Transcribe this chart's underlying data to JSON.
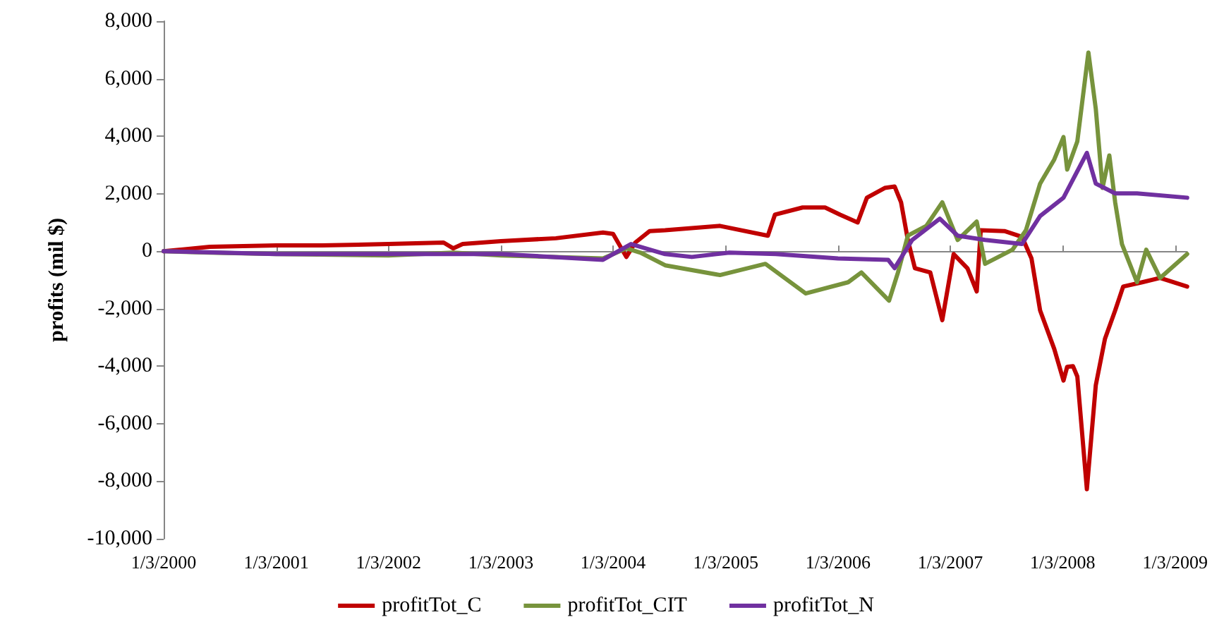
{
  "chart_data": {
    "type": "line",
    "ylabel": "profits (mil $)",
    "legend": "bottom",
    "marker": "none",
    "line_style": "solid",
    "xlim": [
      "2000-01-03",
      "2009-02-11"
    ],
    "xticks": [
      {
        "value": "2000-01-03",
        "label": "1/3/2000"
      },
      {
        "value": "2001-01-03",
        "label": "1/3/2001"
      },
      {
        "value": "2002-01-03",
        "label": "1/3/2002"
      },
      {
        "value": "2003-01-03",
        "label": "1/3/2003"
      },
      {
        "value": "2004-01-03",
        "label": "1/3/2004"
      },
      {
        "value": "2005-01-03",
        "label": "1/3/2005"
      },
      {
        "value": "2006-01-03",
        "label": "1/3/2006"
      },
      {
        "value": "2007-01-03",
        "label": "1/3/2007"
      },
      {
        "value": "2008-01-03",
        "label": "1/3/2008"
      },
      {
        "value": "2009-01-03",
        "label": "1/3/2009"
      }
    ],
    "ylim": [
      -10000,
      8000
    ],
    "yticks": [
      {
        "value": -10000,
        "label": "-10,000"
      },
      {
        "value": -8000,
        "label": "-8,000"
      },
      {
        "value": -6000,
        "label": "-6,000"
      },
      {
        "value": -4000,
        "label": "-4,000"
      },
      {
        "value": -2000,
        "label": "-2,000"
      },
      {
        "value": 0,
        "label": "0"
      },
      {
        "value": 2000,
        "label": "2,000"
      },
      {
        "value": 4000,
        "label": "4,000"
      },
      {
        "value": 6000,
        "label": "6,000"
      },
      {
        "value": 8000,
        "label": "8,000"
      }
    ],
    "series": [
      {
        "name": "profitTot_C",
        "color": "#c00000",
        "x": [
          "2000-01-03",
          "2000-06-01",
          "2001-01-03",
          "2001-06-01",
          "2002-01-03",
          "2002-07-01",
          "2002-08-01",
          "2002-09-01",
          "2003-01-03",
          "2003-07-01",
          "2003-12-01",
          "2004-01-03",
          "2004-02-15",
          "2004-03-15",
          "2004-05-01",
          "2004-06-20",
          "2004-12-15",
          "2005-05-20",
          "2005-06-12",
          "2005-09-10",
          "2005-11-22",
          "2006-01-10",
          "2006-03-08",
          "2006-04-07",
          "2006-06-04",
          "2006-07-06",
          "2006-07-27",
          "2006-08-18",
          "2006-09-10",
          "2006-10-30",
          "2006-12-08",
          "2007-01-14",
          "2007-02-28",
          "2007-03-30",
          "2007-04-12",
          "2007-06-28",
          "2007-08-24",
          "2007-09-24",
          "2007-10-22",
          "2007-12-07",
          "2008-01-06",
          "2008-01-18",
          "2008-02-06",
          "2008-02-20",
          "2008-03-22",
          "2008-04-20",
          "2008-05-20",
          "2008-06-22",
          "2008-07-18",
          "2008-09-18",
          "2008-11-15",
          "2009-02-11"
        ],
        "values": [
          0,
          150,
          200,
          200,
          250,
          300,
          100,
          250,
          350,
          450,
          650,
          600,
          -200,
          300,
          700,
          730,
          880,
          540,
          1270,
          1520,
          1520,
          1270,
          1000,
          1860,
          2200,
          2250,
          1700,
          390,
          -590,
          -740,
          -2400,
          -100,
          -600,
          -1400,
          730,
          700,
          500,
          -250,
          -2060,
          -3400,
          -4500,
          -4020,
          -4000,
          -4360,
          -8280,
          -4660,
          -3040,
          -2060,
          -1230,
          -1080,
          -930,
          -1230
        ]
      },
      {
        "name": "profitTot_CIT",
        "color": "#77933c",
        "x": [
          "2000-01-03",
          "2000-06-01",
          "2001-01-03",
          "2002-01-03",
          "2002-08-01",
          "2003-01-03",
          "2003-12-01",
          "2004-02-15",
          "2004-04-01",
          "2004-06-20",
          "2004-12-15",
          "2005-05-12",
          "2005-09-20",
          "2006-02-05",
          "2006-03-20",
          "2006-06-18",
          "2006-07-17",
          "2006-08-18",
          "2006-10-17",
          "2006-12-08",
          "2007-01-27",
          "2007-03-30",
          "2007-04-26",
          "2007-07-24",
          "2007-09-06",
          "2007-10-22",
          "2007-12-07",
          "2008-01-06",
          "2008-01-18",
          "2008-02-20",
          "2008-03-27",
          "2008-04-20",
          "2008-05-12",
          "2008-06-03",
          "2008-06-22",
          "2008-07-14",
          "2008-09-01",
          "2008-10-01",
          "2008-11-15",
          "2009-02-11"
        ],
        "values": [
          0,
          -50,
          -100,
          -150,
          -50,
          -150,
          -250,
          100,
          -50,
          -490,
          -830,
          -440,
          -1470,
          -1080,
          -740,
          -1720,
          -740,
          540,
          880,
          1700,
          390,
          1030,
          -440,
          50,
          730,
          2350,
          3190,
          3970,
          2840,
          3820,
          6910,
          4950,
          2200,
          3330,
          1700,
          250,
          -1080,
          50,
          -930,
          -100
        ]
      },
      {
        "name": "profitTot_N",
        "color": "#7030a0",
        "x": [
          "2000-01-03",
          "2001-01-03",
          "2002-01-03",
          "2003-01-03",
          "2003-12-01",
          "2004-03-01",
          "2004-06-20",
          "2004-09-15",
          "2005-01-15",
          "2005-06-15",
          "2006-01-03",
          "2006-06-15",
          "2006-07-06",
          "2006-09-01",
          "2006-11-30",
          "2007-01-27",
          "2007-04-26",
          "2007-08-24",
          "2007-10-22",
          "2008-01-06",
          "2008-03-22",
          "2008-04-20",
          "2008-06-22",
          "2008-09-01",
          "2009-02-11"
        ],
        "values": [
          0,
          -100,
          -100,
          -100,
          -300,
          250,
          -100,
          -200,
          -50,
          -100,
          -250,
          -300,
          -590,
          390,
          1130,
          540,
          390,
          250,
          1220,
          1860,
          3420,
          2350,
          2010,
          2010,
          1860
        ]
      }
    ]
  }
}
